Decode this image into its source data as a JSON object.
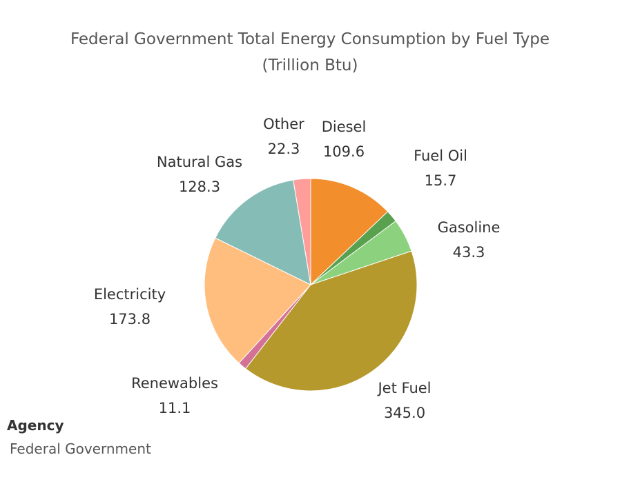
{
  "chart_data": {
    "type": "pie",
    "title": "Federal Government Total Energy Consumption by Fuel Type",
    "subtitle": "(Trillion Btu)",
    "slices": [
      {
        "label": "Diesel",
        "value": 109.6,
        "display": "109.6",
        "color": "#F28E2B"
      },
      {
        "label": "Fuel Oil",
        "value": 15.7,
        "display": "15.7",
        "color": "#59A14F"
      },
      {
        "label": "Gasoline",
        "value": 43.3,
        "display": "43.3",
        "color": "#8CD17D"
      },
      {
        "label": "Jet Fuel",
        "value": 345.0,
        "display": "345.0",
        "color": "#B6992D"
      },
      {
        "label": "Renewables",
        "value": 11.1,
        "display": "11.1",
        "color": "#D37295"
      },
      {
        "label": "Electricity",
        "value": 173.8,
        "display": "173.8",
        "color": "#FFBE7D"
      },
      {
        "label": "Natural Gas",
        "value": 128.3,
        "display": "128.3",
        "color": "#86BCB6"
      },
      {
        "label": "Other",
        "value": 22.3,
        "display": "22.3",
        "color": "#FF9D9A"
      }
    ]
  },
  "filter": {
    "title": "Agency",
    "value": "Federal Government"
  }
}
